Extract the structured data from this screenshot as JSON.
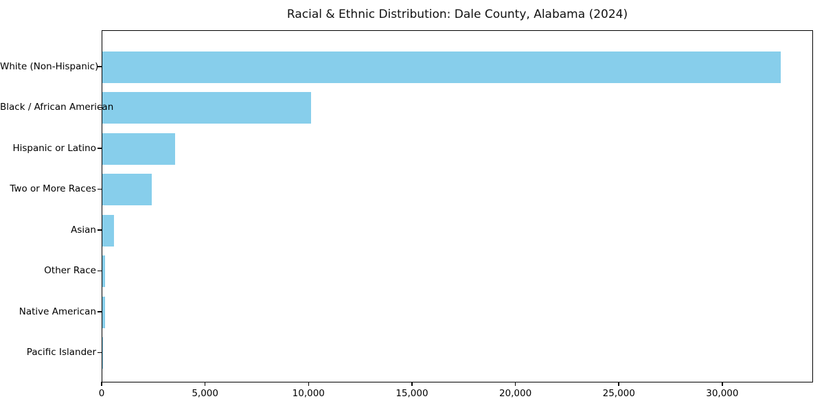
{
  "chart_data": {
    "type": "bar",
    "orientation": "horizontal",
    "title": "Racial & Ethnic Distribution: Dale County, Alabama (2024)",
    "categories": [
      "White (Non-Hispanic)",
      "Black / African American",
      "Hispanic or Latino",
      "Two or More Races",
      "Asian",
      "Other Race",
      "Native American",
      "Pacific Islander"
    ],
    "values": [
      32800,
      10100,
      3530,
      2400,
      580,
      140,
      130,
      20
    ],
    "xlabel": "",
    "ylabel": "",
    "xlim": [
      0,
      34385
    ],
    "xticks": [
      0,
      5000,
      10000,
      15000,
      20000,
      25000,
      30000
    ],
    "xtick_labels": [
      "0",
      "5,000",
      "10,000",
      "15,000",
      "20,000",
      "25,000",
      "30,000"
    ],
    "bar_color": "#87CEEB",
    "background_color": "#FFFFFF",
    "axis_color": "#000000",
    "grid": false,
    "legend": null
  }
}
